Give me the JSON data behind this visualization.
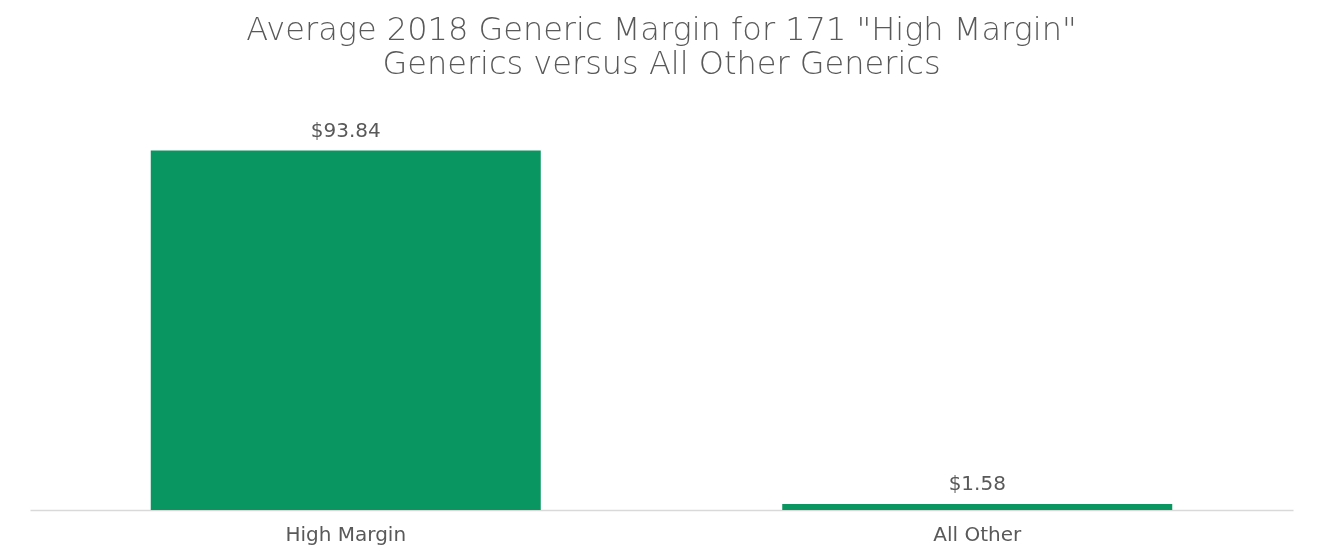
{
  "chart_data": {
    "type": "bar",
    "title": "Average 2018 Generic Margin for 171 \"High Margin\" Generics versus All Other Generics",
    "categories": [
      "High Margin",
      "All Other"
    ],
    "values": [
      93.84,
      1.58
    ],
    "value_labels": [
      "$93.84",
      "$1.58"
    ],
    "color": "#0a9660",
    "tick_labels": "x",
    "grid": false
  }
}
